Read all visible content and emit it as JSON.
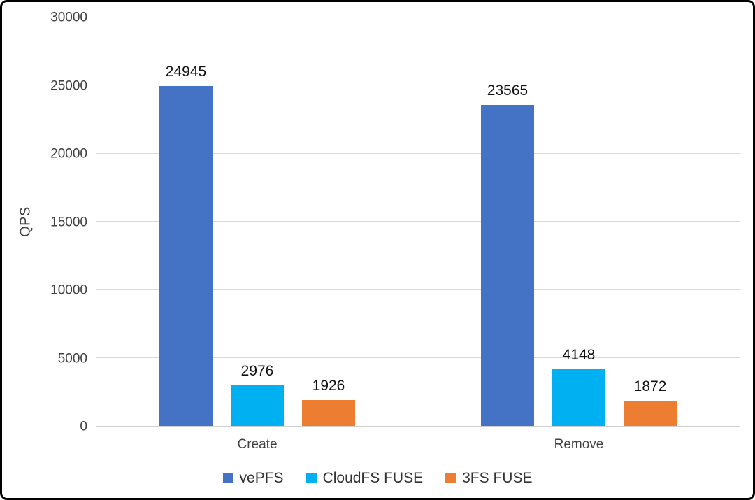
{
  "chart_data": {
    "type": "bar",
    "title": "",
    "xlabel": "",
    "ylabel": "QPS",
    "categories": [
      "Create",
      "Remove"
    ],
    "series": [
      {
        "name": "vePFS",
        "color": "#4472c4",
        "values": [
          24945,
          23565
        ]
      },
      {
        "name": "CloudFS FUSE",
        "color": "#00b0f0",
        "values": [
          2976,
          4148
        ]
      },
      {
        "name": "3FS FUSE",
        "color": "#ed7d31",
        "values": [
          1926,
          1872
        ]
      }
    ],
    "ylim": [
      0,
      30000
    ],
    "ytick_step": 5000,
    "grid": true,
    "legend_position": "bottom"
  }
}
